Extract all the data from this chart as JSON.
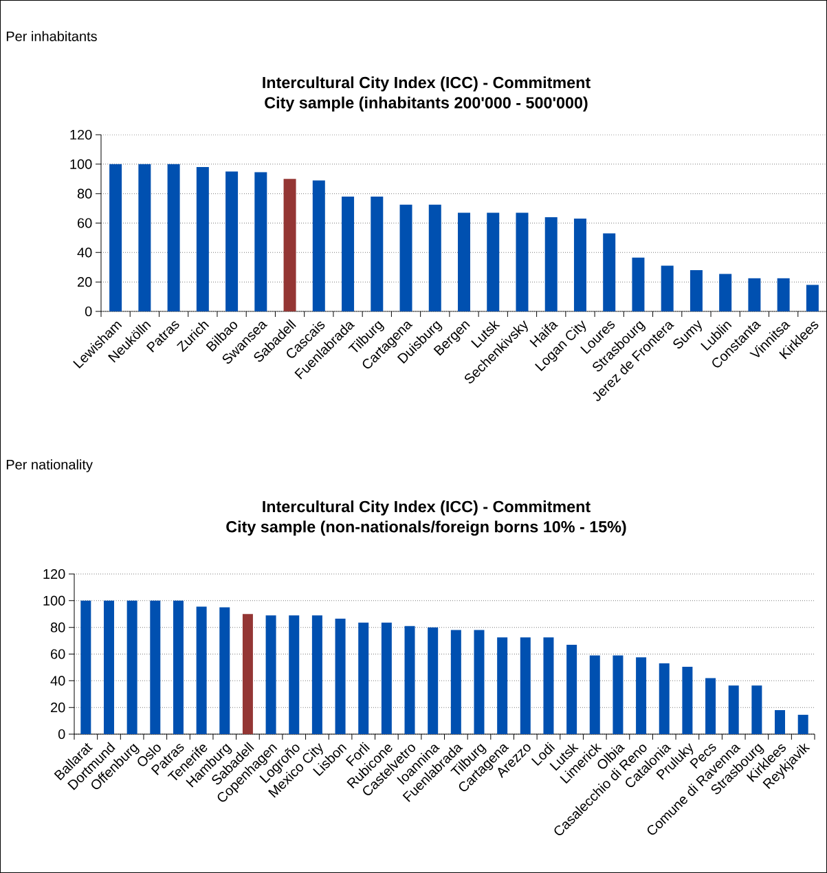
{
  "chart_data": [
    {
      "type": "bar",
      "title": "Intercultural City Index (ICC) - Commitment",
      "subtitle": "City sample (inhabitants 200'000 - 500'000)",
      "annotations": [
        "Per inhabitants"
      ],
      "categories": [
        "Lewisham",
        "Neukölln",
        "Patras",
        "Zurich",
        "Bilbao",
        "Swansea",
        "Sabadell",
        "Cascais",
        "Fuenlabrada",
        "Tilburg",
        "Cartagena",
        "Duisburg",
        "Bergen",
        "Lutsk",
        "Sechenkivsky",
        "Haifa",
        "Logan City",
        "Loures",
        "Strasbourg",
        "Jerez de Frontera",
        "Sumy",
        "Lublin",
        "Constanta",
        "Vinnitsa",
        "Kirklees"
      ],
      "values": [
        100,
        100,
        100,
        98,
        95,
        94.5,
        90,
        89,
        78,
        78,
        72.5,
        72.5,
        67,
        67,
        67,
        64,
        63,
        53,
        36.5,
        31,
        28,
        25.5,
        22.5,
        22.5,
        18
      ],
      "colors": [
        "#0050b0",
        "#0050b0",
        "#0050b0",
        "#0050b0",
        "#0050b0",
        "#0050b0",
        "#943634",
        "#0050b0",
        "#0050b0",
        "#0050b0",
        "#0050b0",
        "#0050b0",
        "#0050b0",
        "#0050b0",
        "#0050b0",
        "#0050b0",
        "#0050b0",
        "#0050b0",
        "#0050b0",
        "#0050b0",
        "#0050b0",
        "#0050b0",
        "#0050b0",
        "#0050b0",
        "#0050b0"
      ],
      "ylim": [
        0,
        120
      ],
      "yticks": [
        0,
        20,
        40,
        60,
        80,
        100,
        120
      ],
      "grid": "y"
    },
    {
      "type": "bar",
      "title": "Intercultural City Index (ICC) - Commitment",
      "subtitle": "City sample (non-nationals/foreign borns 10% - 15%)",
      "annotations": [
        "Per nationality"
      ],
      "categories": [
        "Ballarat",
        "Dortmund",
        "Offenburg",
        "Oslo",
        "Patras",
        "Tenerife",
        "Hamburg",
        "Sabadell",
        "Copenhagen",
        "Logroño",
        "Mexico City",
        "Lisbon",
        "Forli",
        "Rubicone",
        "Castelvetro",
        "Ioannina",
        "Fuenlabrada",
        "Tilburg",
        "Cartagena",
        "Arezzo",
        "Lodi",
        "Lutsk",
        "Limerick",
        "Olbia",
        "Casalecchio di Reno",
        "Catalonia",
        "Pruluky",
        "Pecs",
        "Comune di Ravenna",
        "Strasbourg",
        "Kirklees",
        "Reykjavik"
      ],
      "values": [
        100,
        100,
        100,
        100,
        100,
        95.5,
        95,
        90,
        89,
        89,
        89,
        86.5,
        83.5,
        83.5,
        81,
        80,
        78,
        78,
        72.5,
        72.5,
        72.5,
        67,
        59,
        59,
        57.5,
        53,
        50.5,
        42,
        36.5,
        36.5,
        18,
        14.5
      ],
      "colors": [
        "#0050b0",
        "#0050b0",
        "#0050b0",
        "#0050b0",
        "#0050b0",
        "#0050b0",
        "#0050b0",
        "#943634",
        "#0050b0",
        "#0050b0",
        "#0050b0",
        "#0050b0",
        "#0050b0",
        "#0050b0",
        "#0050b0",
        "#0050b0",
        "#0050b0",
        "#0050b0",
        "#0050b0",
        "#0050b0",
        "#0050b0",
        "#0050b0",
        "#0050b0",
        "#0050b0",
        "#0050b0",
        "#0050b0",
        "#0050b0",
        "#0050b0",
        "#0050b0",
        "#0050b0",
        "#0050b0",
        "#0050b0"
      ],
      "ylim": [
        0,
        120
      ],
      "yticks": [
        0,
        20,
        40,
        60,
        80,
        100,
        120
      ],
      "grid": "y"
    }
  ]
}
